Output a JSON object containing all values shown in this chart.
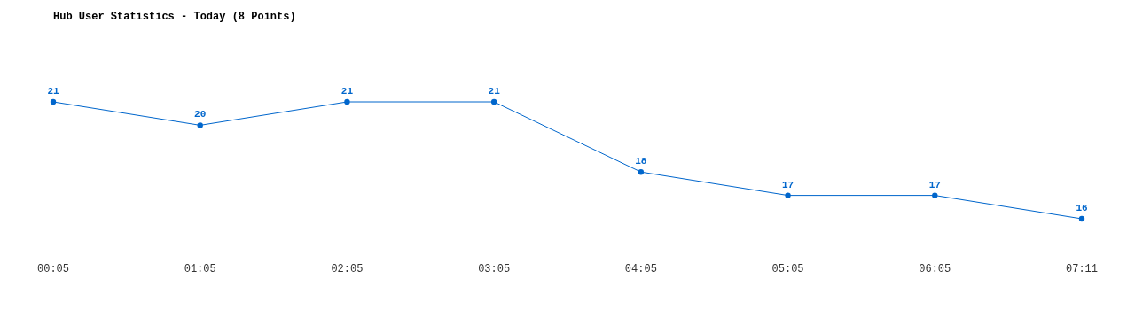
{
  "chart_data": {
    "type": "line",
    "title": "Hub User Statistics - Today (8 Points)",
    "categories": [
      "00:05",
      "01:05",
      "02:05",
      "03:05",
      "04:05",
      "05:05",
      "06:05",
      "07:11"
    ],
    "series": [
      {
        "color": "#0066cc",
        "values": [
          21,
          20,
          21,
          21,
          18,
          17,
          17,
          16
        ]
      }
    ],
    "data_labels": true,
    "marker": "circle"
  }
}
